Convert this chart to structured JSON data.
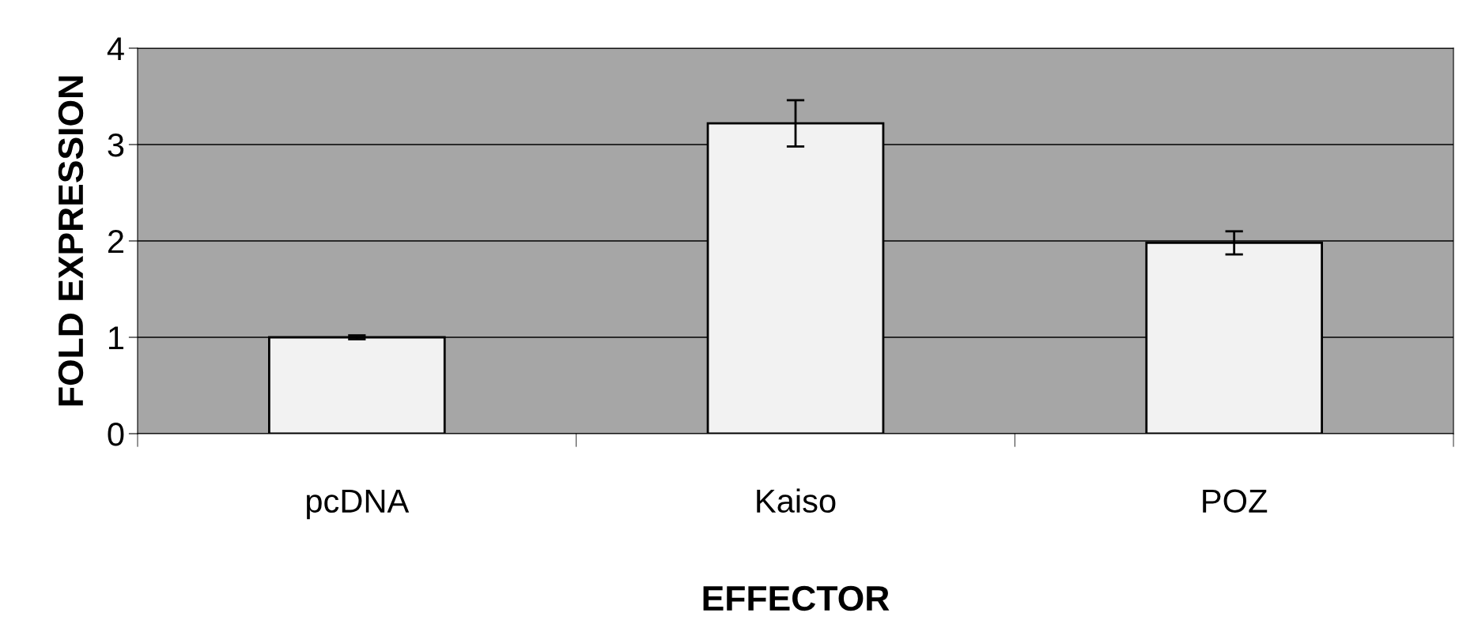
{
  "chart_data": {
    "type": "bar",
    "xlabel": "EFFECTOR",
    "ylabel": "FOLD EXPRESSION",
    "categories": [
      "pcDNA",
      "Kaiso",
      "POZ"
    ],
    "values": [
      1.0,
      3.22,
      1.98
    ],
    "errors": [
      0.02,
      0.24,
      0.12
    ],
    "color": "#f2f2f2",
    "ylim": [
      0,
      4
    ],
    "yticks": [
      0,
      1,
      2,
      3,
      4
    ],
    "grid": "y"
  }
}
